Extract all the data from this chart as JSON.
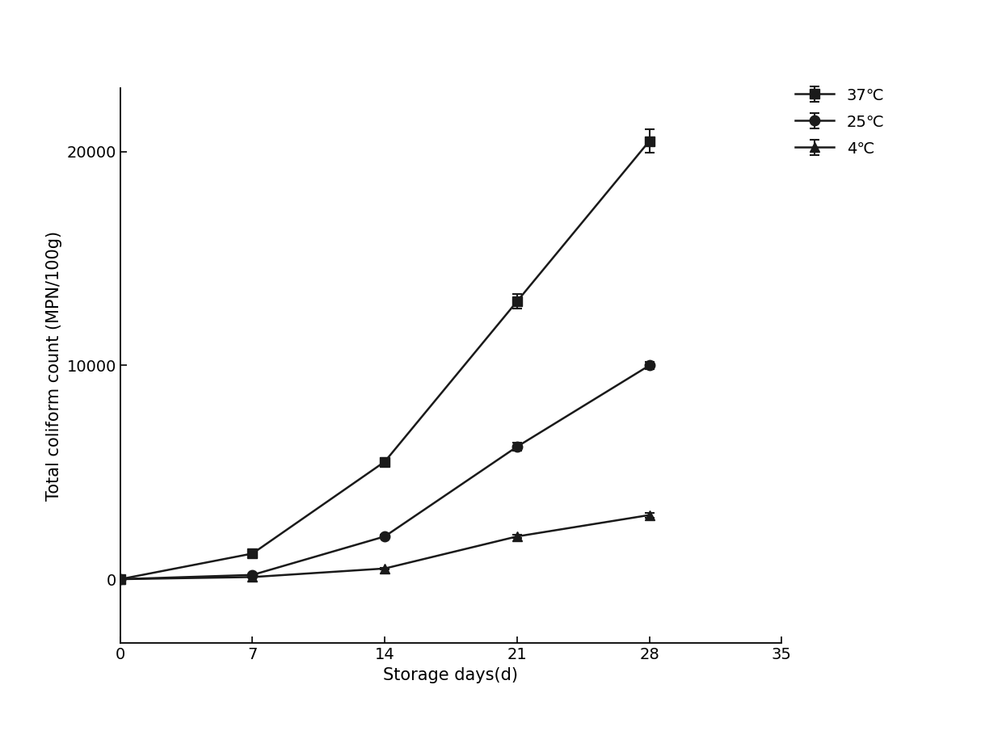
{
  "x": [
    0,
    7,
    14,
    21,
    28
  ],
  "series_37": [
    0,
    1200,
    5500,
    13000,
    20500
  ],
  "series_25": [
    0,
    200,
    2000,
    6200,
    10000
  ],
  "series_4": [
    0,
    100,
    500,
    2000,
    3000
  ],
  "error_37": [
    0,
    80,
    180,
    350,
    550
  ],
  "error_25": [
    0,
    40,
    80,
    180,
    180
  ],
  "error_4": [
    0,
    20,
    40,
    80,
    120
  ],
  "ylabel": "Total coliform count (MPN/100g)",
  "xlabel": "Storage days(d)",
  "legend_labels": [
    "37℃",
    "25℃",
    "4℃"
  ],
  "xlim": [
    0,
    35
  ],
  "ylim": [
    -3000,
    23000
  ],
  "yticks": [
    0,
    10000,
    20000
  ],
  "xticks": [
    0,
    7,
    14,
    21,
    28,
    35
  ],
  "line_color": "#1a1a1a",
  "background_color": "#ffffff",
  "fontsize_label": 15,
  "fontsize_tick": 14,
  "fontsize_legend": 14
}
